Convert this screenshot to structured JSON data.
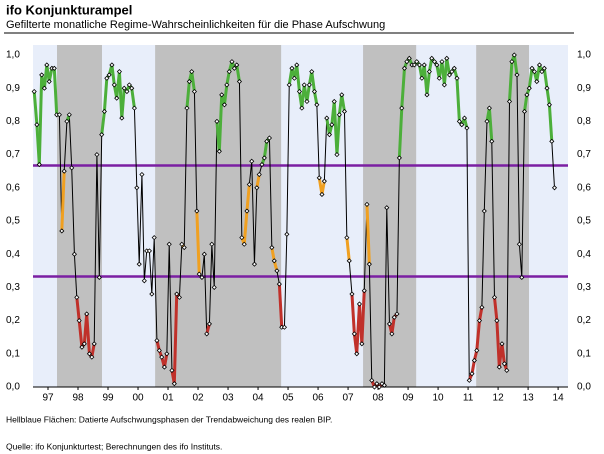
{
  "chart_data": {
    "type": "line",
    "title": "ifo Konjunkturampel",
    "subtitle": "Gefilterte monatliche Regime-Wahrscheinlichkeiten für die Phase Aufschwung",
    "notes": [
      "Hellblaue Flächen: Datierte Aufschwungsphasen der Trendabweichung des realen BIP.",
      "Quelle: ifo Konjunkturtest; Berechnungen des ifo Instituts."
    ],
    "background_color": "#e8eefa",
    "shaded_periods": [
      [
        1997.8,
        1999.3
      ],
      [
        2001.07,
        2005.27
      ],
      [
        2008.0,
        2009.77
      ],
      [
        2011.77,
        2013.53
      ]
    ],
    "shade_color": "#c0c0c0",
    "thresholds": [
      0.667,
      0.333
    ],
    "threshold_color": "#7b1fa2",
    "zone_colors": {
      "high": "#4caf3a",
      "mid": "#f0a020",
      "low": "#c0302a"
    },
    "line_color": "#000000",
    "xlim": [
      1997,
      2014.83
    ],
    "xticks": [
      {
        "value": 1997.5,
        "label": "97"
      },
      {
        "value": 1998.5,
        "label": "98"
      },
      {
        "value": 1999.5,
        "label": "99"
      },
      {
        "value": 2000.5,
        "label": "00"
      },
      {
        "value": 2001.5,
        "label": "01"
      },
      {
        "value": 2002.5,
        "label": "02"
      },
      {
        "value": 2003.5,
        "label": "03"
      },
      {
        "value": 2004.5,
        "label": "04"
      },
      {
        "value": 2005.5,
        "label": "05"
      },
      {
        "value": 2006.5,
        "label": "06"
      },
      {
        "value": 2007.5,
        "label": "07"
      },
      {
        "value": 2008.5,
        "label": "08"
      },
      {
        "value": 2009.5,
        "label": "09"
      },
      {
        "value": 2010.5,
        "label": "10"
      },
      {
        "value": 2011.5,
        "label": "11"
      },
      {
        "value": 2012.5,
        "label": "12"
      },
      {
        "value": 2013.5,
        "label": "13"
      },
      {
        "value": 2014.5,
        "label": "14"
      }
    ],
    "ylim": [
      0,
      1
    ],
    "yticks": [
      {
        "value": 0,
        "label": "0,0"
      },
      {
        "value": 0.1,
        "label": "0,1"
      },
      {
        "value": 0.2,
        "label": "0,2"
      },
      {
        "value": 0.3,
        "label": "0,3"
      },
      {
        "value": 0.4,
        "label": "0,4"
      },
      {
        "value": 0.5,
        "label": "0,5"
      },
      {
        "value": 0.6,
        "label": "0,6"
      },
      {
        "value": 0.7,
        "label": "0,7"
      },
      {
        "value": 0.8,
        "label": "0,8"
      },
      {
        "value": 0.9,
        "label": "0,9"
      },
      {
        "value": 1,
        "label": "1,0"
      }
    ],
    "y2lim": [
      0,
      1
    ],
    "y2ticks": [
      {
        "value": 0,
        "label": "0,0"
      },
      {
        "value": 0.1,
        "label": "0,1"
      },
      {
        "value": 0.2,
        "label": "0,2"
      },
      {
        "value": 0.3,
        "label": "0,3"
      },
      {
        "value": 0.4,
        "label": "0,4"
      },
      {
        "value": 0.5,
        "label": "0,5"
      },
      {
        "value": 0.6,
        "label": "0,6"
      },
      {
        "value": 0.7,
        "label": "0,7"
      },
      {
        "value": 0.8,
        "label": "0,8"
      },
      {
        "value": 0.9,
        "label": "0,9"
      },
      {
        "value": 1,
        "label": "1,0"
      }
    ],
    "x": [
      1997.04,
      1997.13,
      1997.21,
      1997.29,
      1997.38,
      1997.46,
      1997.54,
      1997.63,
      1997.71,
      1997.79,
      1997.88,
      1997.96,
      1998.04,
      1998.13,
      1998.21,
      1998.29,
      1998.38,
      1998.46,
      1998.54,
      1998.63,
      1998.71,
      1998.79,
      1998.88,
      1998.96,
      1999.04,
      1999.13,
      1999.21,
      1999.29,
      1999.38,
      1999.46,
      1999.54,
      1999.63,
      1999.71,
      1999.79,
      1999.88,
      1999.96,
      2000.04,
      2000.13,
      2000.21,
      2000.29,
      2000.38,
      2000.46,
      2000.54,
      2000.63,
      2000.71,
      2000.79,
      2000.88,
      2000.96,
      2001.04,
      2001.13,
      2001.21,
      2001.29,
      2001.38,
      2001.46,
      2001.54,
      2001.63,
      2001.71,
      2001.79,
      2001.88,
      2001.96,
      2002.04,
      2002.13,
      2002.21,
      2002.29,
      2002.38,
      2002.46,
      2002.54,
      2002.63,
      2002.71,
      2002.79,
      2002.88,
      2002.96,
      2003.04,
      2003.13,
      2003.21,
      2003.29,
      2003.38,
      2003.46,
      2003.54,
      2003.63,
      2003.71,
      2003.79,
      2003.88,
      2003.96,
      2004.04,
      2004.13,
      2004.21,
      2004.29,
      2004.38,
      2004.46,
      2004.54,
      2004.63,
      2004.71,
      2004.79,
      2004.88,
      2004.96,
      2005.04,
      2005.13,
      2005.21,
      2005.29,
      2005.38,
      2005.46,
      2005.54,
      2005.63,
      2005.71,
      2005.79,
      2005.88,
      2005.96,
      2006.04,
      2006.13,
      2006.21,
      2006.29,
      2006.38,
      2006.46,
      2006.54,
      2006.63,
      2006.71,
      2006.79,
      2006.88,
      2006.96,
      2007.04,
      2007.13,
      2007.21,
      2007.29,
      2007.38,
      2007.46,
      2007.54,
      2007.63,
      2007.71,
      2007.79,
      2007.88,
      2007.96,
      2008.04,
      2008.13,
      2008.21,
      2008.29,
      2008.38,
      2008.46,
      2008.54,
      2008.63,
      2008.71,
      2008.79,
      2008.88,
      2008.96,
      2009.04,
      2009.13,
      2009.21,
      2009.29,
      2009.38,
      2009.46,
      2009.54,
      2009.63,
      2009.71,
      2009.79,
      2009.88,
      2009.96,
      2010.04,
      2010.13,
      2010.21,
      2010.29,
      2010.38,
      2010.46,
      2010.54,
      2010.63,
      2010.71,
      2010.79,
      2010.88,
      2010.96,
      2011.04,
      2011.13,
      2011.21,
      2011.29,
      2011.38,
      2011.46,
      2011.54,
      2011.63,
      2011.71,
      2011.79,
      2011.88,
      2011.96,
      2012.04,
      2012.13,
      2012.21,
      2012.29,
      2012.38,
      2012.46,
      2012.54,
      2012.63,
      2012.71,
      2012.79,
      2012.88,
      2012.96,
      2013.04,
      2013.13,
      2013.21,
      2013.29,
      2013.38,
      2013.46,
      2013.54,
      2013.63,
      2013.71,
      2013.79,
      2013.88,
      2013.96,
      2014.04,
      2014.13,
      2014.21,
      2014.29,
      2014.38
    ],
    "values": [
      0.89,
      0.79,
      0.67,
      0.94,
      0.9,
      0.97,
      0.92,
      0.96,
      0.96,
      0.82,
      0.82,
      0.47,
      0.65,
      0.8,
      0.82,
      0.66,
      0.4,
      0.27,
      0.2,
      0.12,
      0.13,
      0.22,
      0.1,
      0.09,
      0.13,
      0.7,
      0.33,
      0.76,
      0.83,
      0.93,
      0.94,
      0.97,
      0.91,
      0.87,
      0.95,
      0.81,
      0.9,
      0.89,
      0.91,
      0.9,
      0.84,
      0.6,
      0.37,
      0.64,
      0.32,
      0.41,
      0.41,
      0.28,
      0.45,
      0.14,
      0.11,
      0.09,
      0.06,
      0.1,
      0.43,
      0.05,
      0.01,
      0.28,
      0.27,
      0.43,
      0.42,
      0.84,
      0.92,
      0.95,
      0.89,
      0.53,
      0.34,
      0.33,
      0.4,
      0.16,
      0.19,
      0.43,
      0.3,
      0.8,
      0.71,
      0.88,
      0.85,
      0.91,
      0.95,
      0.98,
      0.96,
      0.97,
      0.92,
      0.45,
      0.43,
      0.53,
      0.61,
      0.68,
      0.37,
      0.6,
      0.64,
      0.67,
      0.69,
      0.74,
      0.75,
      0.42,
      0.38,
      0.35,
      0.31,
      0.18,
      0.18,
      0.46,
      0.91,
      0.96,
      0.93,
      0.97,
      0.89,
      0.84,
      0.91,
      0.86,
      0.91,
      0.95,
      0.89,
      0.85,
      0.63,
      0.58,
      0.62,
      0.81,
      0.76,
      0.79,
      0.86,
      0.7,
      0.82,
      0.88,
      0.83,
      0.45,
      0.38,
      0.28,
      0.16,
      0.1,
      0.25,
      0.13,
      0.29,
      0.55,
      0.37,
      0.02,
      0.0,
      0.01,
      0.0,
      0.01,
      0.005,
      0.54,
      0.19,
      0.16,
      0.21,
      0.22,
      0.69,
      0.84,
      0.96,
      0.98,
      0.99,
      0.97,
      0.97,
      0.98,
      0.97,
      0.93,
      0.97,
      0.88,
      0.95,
      0.99,
      0.98,
      0.97,
      0.93,
      0.98,
      0.91,
      0.99,
      0.94,
      0.95,
      0.96,
      0.93,
      0.8,
      0.79,
      0.81,
      0.78,
      0.02,
      0.04,
      0.08,
      0.11,
      0.2,
      0.24,
      0.53,
      0.8,
      0.84,
      0.74,
      0.27,
      0.2,
      0.06,
      0.13,
      0.07,
      0.05,
      0.86,
      0.98,
      1.0,
      0.94,
      0.43,
      0.33,
      0.83,
      0.88,
      0.9,
      0.96,
      0.95,
      0.92,
      0.97,
      0.95,
      0.96,
      0.9,
      0.85,
      0.74,
      0.6
    ]
  }
}
